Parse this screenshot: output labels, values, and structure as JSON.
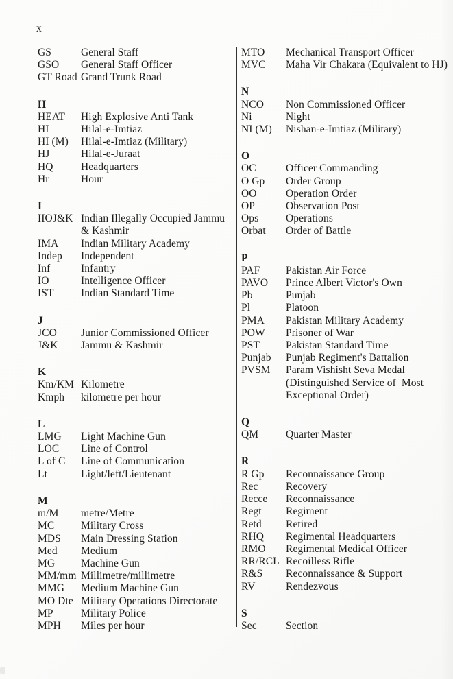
{
  "page": {
    "number": "x"
  },
  "colors": {
    "paper": "#fbfbfa",
    "ink": "#1e1e1e",
    "divider": "#333333"
  },
  "glossary": {
    "left_column": {
      "sections": [
        {
          "header": "",
          "entries": [
            {
              "abbr": "GS",
              "def": "General Staff"
            },
            {
              "abbr": "GSO",
              "def": "General Staff Officer"
            },
            {
              "abbr": "GT Road",
              "def": "Grand Trunk Road"
            }
          ]
        },
        {
          "header": "H",
          "entries": [
            {
              "abbr": "HEAT",
              "def": "High Explosive Anti Tank"
            },
            {
              "abbr": "HI",
              "def": "Hilal-e-Imtiaz"
            },
            {
              "abbr": "HI (M)",
              "def": "Hilal-e-Imtiaz (Military)"
            },
            {
              "abbr": "HJ",
              "def": "Hilal-e-Juraat"
            },
            {
              "abbr": "HQ",
              "def": "Headquarters"
            },
            {
              "abbr": "Hr",
              "def": "Hour"
            }
          ]
        },
        {
          "header": "I",
          "entries": [
            {
              "abbr": "IIOJ&K",
              "def": "Indian Illegally Occupied Jammu\n& Kashmir"
            },
            {
              "abbr": "IMA",
              "def": "Indian Military Academy"
            },
            {
              "abbr": "Indep",
              "def": "Independent"
            },
            {
              "abbr": "Inf",
              "def": "Infantry"
            },
            {
              "abbr": "IO",
              "def": "Intelligence Officer"
            },
            {
              "abbr": "IST",
              "def": "Indian Standard Time"
            }
          ]
        },
        {
          "header": "J",
          "entries": [
            {
              "abbr": "JCO",
              "def": "Junior Commissioned Officer"
            },
            {
              "abbr": "J&K",
              "def": "Jammu & Kashmir"
            }
          ]
        },
        {
          "header": "K",
          "entries": [
            {
              "abbr": "Km/KM",
              "def": "Kilometre"
            },
            {
              "abbr": "Kmph",
              "def": "kilometre per hour"
            }
          ]
        },
        {
          "header": "L",
          "entries": [
            {
              "abbr": "LMG",
              "def": "Light Machine Gun"
            },
            {
              "abbr": "LOC",
              "def": "Line of Control"
            },
            {
              "abbr": "L of C",
              "def": "Line of Communication"
            },
            {
              "abbr": "Lt",
              "def": "Light/left/Lieutenant"
            }
          ]
        },
        {
          "header": "M",
          "entries": [
            {
              "abbr": "m/M",
              "def": "metre/Metre"
            },
            {
              "abbr": "MC",
              "def": "Military Cross"
            },
            {
              "abbr": "MDS",
              "def": "Main Dressing Station"
            },
            {
              "abbr": "Med",
              "def": "Medium"
            },
            {
              "abbr": "MG",
              "def": "Machine Gun"
            },
            {
              "abbr": "MM/mm",
              "def": "Millimetre/millimetre"
            },
            {
              "abbr": "MMG",
              "def": "Medium Machine Gun"
            },
            {
              "abbr": "MO Dte",
              "def": "Military Operations Directorate"
            },
            {
              "abbr": "MP",
              "def": "Military Police"
            },
            {
              "abbr": "MPH",
              "def": "Miles per hour"
            }
          ]
        }
      ]
    },
    "right_column": {
      "sections": [
        {
          "header": "",
          "entries": [
            {
              "abbr": "MTO",
              "def": "Mechanical Transport Officer"
            },
            {
              "abbr": "MVC",
              "def": "Maha Vir Chakara (Equivalent to HJ)"
            }
          ]
        },
        {
          "header": "N",
          "entries": [
            {
              "abbr": "NCO",
              "def": "Non Commissioned Officer"
            },
            {
              "abbr": "Ni",
              "def": "Night"
            },
            {
              "abbr": "NI (M)",
              "def": "Nishan-e-Imtiaz (Military)"
            }
          ]
        },
        {
          "header": "O",
          "entries": [
            {
              "abbr": "OC",
              "def": "Officer Commanding"
            },
            {
              "abbr": "O Gp",
              "def": "Order Group"
            },
            {
              "abbr": "OO",
              "def": "Operation Order"
            },
            {
              "abbr": "OP",
              "def": "Observation Post"
            },
            {
              "abbr": "Ops",
              "def": "Operations"
            },
            {
              "abbr": "Orbat",
              "def": "Order of Battle"
            }
          ]
        },
        {
          "header": "P",
          "entries": [
            {
              "abbr": "PAF",
              "def": "Pakistan Air Force"
            },
            {
              "abbr": "PAVO",
              "def": "Prince Albert Victor's Own"
            },
            {
              "abbr": "Pb",
              "def": "Punjab"
            },
            {
              "abbr": "Pl",
              "def": "Platoon"
            },
            {
              "abbr": "PMA",
              "def": "Pakistan Military Academy"
            },
            {
              "abbr": "POW",
              "def": "Prisoner of War"
            },
            {
              "abbr": "PST",
              "def": "Pakistan Standard Time"
            },
            {
              "abbr": "Punjab",
              "def": "Punjab Regiment's Battalion"
            },
            {
              "abbr": "PVSM",
              "def": "Param Vishisht Seva Medal\n(Distinguished Service of  Most\nExceptional Order)"
            }
          ]
        },
        {
          "header": "Q",
          "entries": [
            {
              "abbr": "QM",
              "def": "Quarter Master"
            }
          ]
        },
        {
          "header": "R",
          "entries": [
            {
              "abbr": "R Gp",
              "def": "Reconnaissance Group"
            },
            {
              "abbr": "Rec",
              "def": "Recovery"
            },
            {
              "abbr": "Recce",
              "def": "Reconnaissance"
            },
            {
              "abbr": "Regt",
              "def": "Regiment"
            },
            {
              "abbr": "Retd",
              "def": "Retired"
            },
            {
              "abbr": "RHQ",
              "def": "Regimental Headquarters"
            },
            {
              "abbr": "RMO",
              "def": "Regimental Medical Officer"
            },
            {
              "abbr": "RR/RCL",
              "def": "Recoilless Rifle"
            },
            {
              "abbr": "R&S",
              "def": "Reconnaissance & Support"
            },
            {
              "abbr": "RV",
              "def": "Rendezvous"
            }
          ]
        },
        {
          "header": "S",
          "entries": [
            {
              "abbr": "Sec",
              "def": "Section"
            }
          ]
        }
      ]
    }
  }
}
